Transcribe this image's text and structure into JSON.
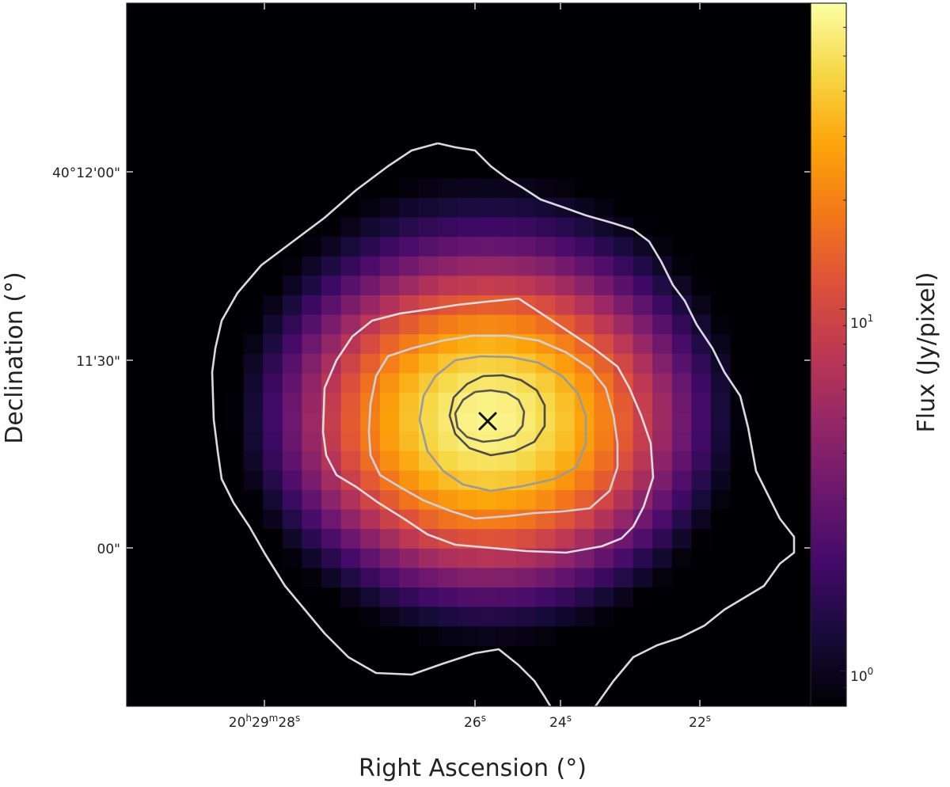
{
  "chart_data": {
    "type": "heatmap",
    "title": "",
    "xlabel": "Right Ascension (°)",
    "ylabel": "Declination (°)",
    "x_ticks": [
      {
        "value": "20h29m28s",
        "label_parts": [
          {
            "t": "20",
            "sup": false
          },
          {
            "t": "h",
            "sup": true
          },
          {
            "t": "29",
            "sup": false
          },
          {
            "t": "m",
            "sup": true
          },
          {
            "t": "28",
            "sup": false
          },
          {
            "t": "s",
            "sup": true
          }
        ]
      },
      {
        "value": "26s",
        "label_parts": [
          {
            "t": "26",
            "sup": false
          },
          {
            "t": "s",
            "sup": true
          }
        ]
      },
      {
        "value": "24s",
        "label_parts": [
          {
            "t": "24",
            "sup": false
          },
          {
            "t": "s",
            "sup": true
          }
        ]
      },
      {
        "value": "22s",
        "label_parts": [
          {
            "t": "22",
            "sup": false
          },
          {
            "t": "s",
            "sup": true
          }
        ]
      }
    ],
    "y_ticks": [
      {
        "value": "40°12'00\"",
        "label": "40°12'00\""
      },
      {
        "value": "11'30\"",
        "label": "11'30\""
      },
      {
        "value": "00\"",
        "label": "00\""
      }
    ],
    "colorbar": {
      "label": "Flux (Jy/pixel)",
      "scale": "log",
      "cmap": "inferno",
      "range": [
        0.8,
        70
      ],
      "major_ticks": [
        {
          "value": 1,
          "base": "10",
          "exp": "0"
        },
        {
          "value": 10,
          "base": "10",
          "exp": "1"
        }
      ]
    },
    "peak": {
      "marker": "x",
      "color": "#111111"
    },
    "contour_colors": [
      "#d9d9e0",
      "#dcdce2",
      "#d0d0d6",
      "#9a9a9a",
      "#555555"
    ],
    "grid": false,
    "legend": "none"
  }
}
